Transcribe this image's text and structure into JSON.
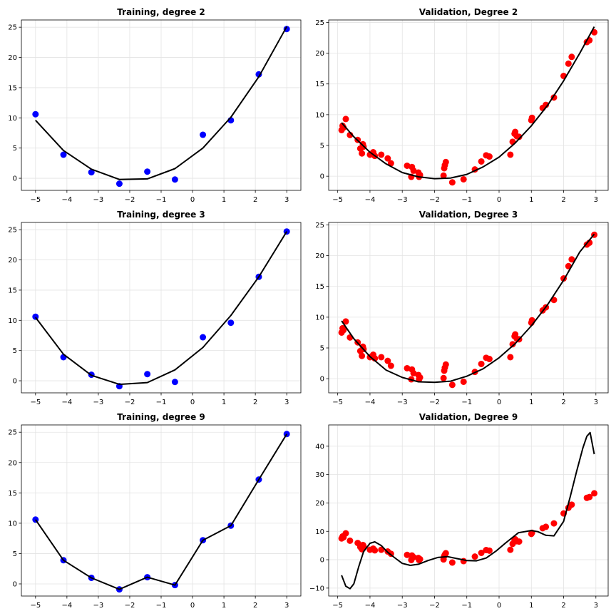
{
  "chart_data": [
    {
      "type": "scatter",
      "title": "Training, degree 2",
      "xlabel": "",
      "ylabel": "",
      "xlim": [
        -5.45,
        3.45
      ],
      "ylim": [
        -2.0,
        26.2
      ],
      "xticks": [
        -5,
        -4,
        -3,
        -2,
        -1,
        0,
        1,
        2,
        3
      ],
      "yticks": [
        0,
        5,
        10,
        15,
        20,
        25
      ],
      "grid": true,
      "series": [
        {
          "kind": "points",
          "color": "#0000ff",
          "x": [
            -5.0,
            -4.11,
            -3.22,
            -2.33,
            -1.44,
            -0.56,
            0.33,
            1.22,
            2.11,
            3.0
          ],
          "y": [
            10.6,
            3.9,
            1.0,
            -0.9,
            1.1,
            -0.2,
            7.2,
            9.6,
            17.2,
            24.7
          ]
        },
        {
          "kind": "line",
          "color": "#000000",
          "x": [
            -5.0,
            -4.11,
            -3.22,
            -2.33,
            -1.44,
            -0.56,
            0.33,
            1.22,
            2.11,
            3.0
          ],
          "y": [
            9.6,
            4.6,
            1.5,
            -0.2,
            -0.1,
            1.6,
            5.0,
            10.1,
            16.8,
            25.1
          ]
        }
      ]
    },
    {
      "type": "scatter",
      "title": "Validation, Degree 2",
      "xlabel": "",
      "ylabel": "",
      "xlim": [
        -5.28,
        3.38
      ],
      "ylim": [
        -2.3,
        25.4
      ],
      "xticks": [
        -5,
        -4,
        -3,
        -2,
        -1,
        0,
        1,
        2,
        3
      ],
      "yticks": [
        0,
        5,
        10,
        15,
        20,
        25
      ],
      "grid": true,
      "series": [
        {
          "kind": "points",
          "color": "#ff0000",
          "x": [
            -4.88,
            -4.85,
            -4.82,
            -4.75,
            -4.62,
            -4.38,
            -4.3,
            -4.25,
            -4.22,
            -4.2,
            -4.0,
            -3.9,
            -3.85,
            -3.65,
            -3.45,
            -3.35,
            -2.85,
            -2.72,
            -2.7,
            -2.65,
            -2.5,
            -2.48,
            -2.45,
            -1.72,
            -1.7,
            -1.68,
            -1.65,
            -1.45,
            -1.1,
            -0.75,
            -0.55,
            -0.4,
            -0.3,
            0.35,
            0.42,
            0.48,
            0.5,
            0.55,
            0.62,
            1.0,
            1.02,
            1.35,
            1.45,
            1.7,
            2.0,
            2.15,
            2.25,
            2.72,
            2.8,
            2.95
          ],
          "y": [
            7.5,
            8.2,
            7.9,
            9.3,
            6.7,
            5.9,
            4.5,
            3.7,
            5.2,
            4.8,
            3.5,
            3.9,
            3.3,
            3.5,
            2.9,
            2.1,
            1.7,
            -0.1,
            1.5,
            0.9,
            0.6,
            -0.1,
            0.2,
            0.1,
            1.3,
            1.8,
            2.3,
            -1.0,
            -0.5,
            1.1,
            2.4,
            3.4,
            3.2,
            3.5,
            5.6,
            6.9,
            7.2,
            6.5,
            6.4,
            9.1,
            9.5,
            11.1,
            11.6,
            12.8,
            16.3,
            18.3,
            19.4,
            21.8,
            22.1,
            23.4
          ]
        },
        {
          "kind": "line",
          "color": "#000000",
          "x": [
            -4.88,
            -4.5,
            -4.0,
            -3.5,
            -3.0,
            -2.5,
            -2.0,
            -1.5,
            -1.0,
            -0.5,
            0.0,
            0.5,
            1.0,
            1.5,
            2.0,
            2.5,
            2.95
          ],
          "y": [
            8.7,
            6.4,
            3.9,
            2.0,
            0.6,
            -0.1,
            -0.4,
            -0.3,
            0.3,
            1.5,
            3.1,
            5.4,
            8.2,
            11.5,
            15.5,
            20.0,
            24.3
          ]
        }
      ]
    },
    {
      "type": "scatter",
      "title": "Training, degree 3",
      "xlabel": "",
      "ylabel": "",
      "xlim": [
        -5.45,
        3.45
      ],
      "ylim": [
        -2.0,
        26.2
      ],
      "xticks": [
        -5,
        -4,
        -3,
        -2,
        -1,
        0,
        1,
        2,
        3
      ],
      "yticks": [
        0,
        5,
        10,
        15,
        20,
        25
      ],
      "grid": true,
      "series": [
        {
          "kind": "points",
          "color": "#0000ff",
          "x": [
            -5.0,
            -4.11,
            -3.22,
            -2.33,
            -1.44,
            -0.56,
            0.33,
            1.22,
            2.11,
            3.0
          ],
          "y": [
            10.6,
            3.9,
            1.0,
            -0.9,
            1.1,
            -0.2,
            7.2,
            9.6,
            17.2,
            24.7
          ]
        },
        {
          "kind": "line",
          "color": "#000000",
          "x": [
            -5.0,
            -4.11,
            -3.22,
            -2.33,
            -1.44,
            -0.56,
            0.33,
            1.22,
            2.11,
            3.0
          ],
          "y": [
            10.5,
            4.4,
            0.9,
            -0.6,
            -0.3,
            1.8,
            5.5,
            10.8,
            17.2,
            24.7
          ]
        }
      ]
    },
    {
      "type": "scatter",
      "title": "Validation, Degree 3",
      "xlabel": "",
      "ylabel": "",
      "xlim": [
        -5.28,
        3.38
      ],
      "ylim": [
        -2.3,
        25.4
      ],
      "xticks": [
        -5,
        -4,
        -3,
        -2,
        -1,
        0,
        1,
        2,
        3
      ],
      "yticks": [
        0,
        5,
        10,
        15,
        20,
        25
      ],
      "grid": true,
      "series": [
        {
          "kind": "points",
          "color": "#ff0000",
          "x": [
            -4.88,
            -4.85,
            -4.82,
            -4.75,
            -4.62,
            -4.38,
            -4.3,
            -4.25,
            -4.22,
            -4.2,
            -4.0,
            -3.9,
            -3.85,
            -3.65,
            -3.45,
            -3.35,
            -2.85,
            -2.72,
            -2.7,
            -2.65,
            -2.5,
            -2.48,
            -2.45,
            -1.72,
            -1.7,
            -1.68,
            -1.65,
            -1.45,
            -1.1,
            -0.75,
            -0.55,
            -0.4,
            -0.3,
            0.35,
            0.42,
            0.48,
            0.5,
            0.55,
            0.62,
            1.0,
            1.02,
            1.35,
            1.45,
            1.7,
            2.0,
            2.15,
            2.25,
            2.72,
            2.8,
            2.95
          ],
          "y": [
            7.5,
            8.2,
            7.9,
            9.3,
            6.7,
            5.9,
            4.5,
            3.7,
            5.2,
            4.8,
            3.5,
            3.9,
            3.3,
            3.5,
            2.9,
            2.1,
            1.7,
            -0.1,
            1.5,
            0.9,
            0.6,
            -0.1,
            0.2,
            0.1,
            1.3,
            1.8,
            2.3,
            -1.0,
            -0.5,
            1.1,
            2.4,
            3.4,
            3.2,
            3.5,
            5.6,
            6.9,
            7.2,
            6.5,
            6.4,
            9.1,
            9.5,
            11.1,
            11.6,
            12.8,
            16.3,
            18.3,
            19.4,
            21.8,
            22.1,
            23.4
          ]
        },
        {
          "kind": "line",
          "color": "#000000",
          "x": [
            -4.88,
            -4.5,
            -4.0,
            -3.5,
            -3.0,
            -2.5,
            -2.0,
            -1.5,
            -1.0,
            -0.5,
            0.0,
            0.5,
            1.0,
            1.5,
            2.0,
            2.5,
            2.95
          ],
          "y": [
            9.4,
            6.5,
            3.6,
            1.4,
            0.2,
            -0.5,
            -0.6,
            -0.4,
            0.4,
            1.6,
            3.4,
            5.7,
            8.6,
            12.0,
            16.0,
            20.6,
            23.5
          ]
        }
      ]
    },
    {
      "type": "scatter",
      "title": "Training, degree 9",
      "xlabel": "",
      "ylabel": "",
      "xlim": [
        -5.45,
        3.45
      ],
      "ylim": [
        -2.0,
        26.2
      ],
      "xticks": [
        -5,
        -4,
        -3,
        -2,
        -1,
        0,
        1,
        2,
        3
      ],
      "yticks": [
        0,
        5,
        10,
        15,
        20,
        25
      ],
      "grid": true,
      "series": [
        {
          "kind": "points",
          "color": "#0000ff",
          "x": [
            -5.0,
            -4.11,
            -3.22,
            -2.33,
            -1.44,
            -0.56,
            0.33,
            1.22,
            2.11,
            3.0
          ],
          "y": [
            10.6,
            3.9,
            1.0,
            -0.9,
            1.1,
            -0.2,
            7.2,
            9.6,
            17.2,
            24.7
          ]
        },
        {
          "kind": "line",
          "color": "#000000",
          "x": [
            -5.0,
            -4.11,
            -3.22,
            -2.33,
            -1.44,
            -0.56,
            0.33,
            1.22,
            2.11,
            3.0
          ],
          "y": [
            10.6,
            3.9,
            1.0,
            -0.9,
            1.1,
            -0.2,
            7.2,
            9.6,
            17.2,
            24.7
          ]
        }
      ]
    },
    {
      "type": "scatter",
      "title": "Validation, Degree 9",
      "xlabel": "",
      "ylabel": "",
      "xlim": [
        -5.28,
        3.38
      ],
      "ylim": [
        -12.8,
        47.5
      ],
      "xticks": [
        -5,
        -4,
        -3,
        -2,
        -1,
        0,
        1,
        2,
        3
      ],
      "yticks": [
        -10,
        0,
        10,
        20,
        30,
        40
      ],
      "grid": true,
      "series": [
        {
          "kind": "points",
          "color": "#ff0000",
          "x": [
            -4.88,
            -4.85,
            -4.82,
            -4.75,
            -4.62,
            -4.38,
            -4.3,
            -4.25,
            -4.22,
            -4.2,
            -4.0,
            -3.9,
            -3.85,
            -3.65,
            -3.45,
            -3.35,
            -2.85,
            -2.72,
            -2.7,
            -2.65,
            -2.5,
            -2.48,
            -2.45,
            -1.72,
            -1.7,
            -1.68,
            -1.65,
            -1.45,
            -1.1,
            -0.75,
            -0.55,
            -0.4,
            -0.3,
            0.35,
            0.42,
            0.48,
            0.5,
            0.55,
            0.62,
            1.0,
            1.02,
            1.35,
            1.45,
            1.7,
            2.0,
            2.15,
            2.25,
            2.72,
            2.8,
            2.95
          ],
          "y": [
            7.5,
            8.2,
            7.9,
            9.3,
            6.7,
            5.9,
            4.5,
            3.7,
            5.2,
            4.8,
            3.5,
            3.9,
            3.3,
            3.5,
            2.9,
            2.1,
            1.7,
            -0.1,
            1.5,
            0.9,
            0.6,
            -0.1,
            0.2,
            0.1,
            1.3,
            1.8,
            2.3,
            -1.0,
            -0.5,
            1.1,
            2.4,
            3.4,
            3.2,
            3.5,
            5.6,
            6.9,
            7.2,
            6.5,
            6.4,
            9.1,
            9.5,
            11.1,
            11.6,
            12.8,
            16.3,
            18.3,
            19.4,
            21.8,
            22.1,
            23.4
          ]
        },
        {
          "kind": "line",
          "color": "#000000",
          "x": [
            -4.88,
            -4.75,
            -4.62,
            -4.5,
            -4.35,
            -4.2,
            -4.0,
            -3.85,
            -3.65,
            -3.45,
            -3.2,
            -3.0,
            -2.75,
            -2.5,
            -2.2,
            -1.9,
            -1.6,
            -1.3,
            -1.0,
            -0.7,
            -0.4,
            -0.1,
            0.2,
            0.6,
            1.0,
            1.2,
            1.45,
            1.7,
            2.0,
            2.2,
            2.4,
            2.6,
            2.72,
            2.82,
            2.95
          ],
          "y": [
            -5.5,
            -9.3,
            -10.2,
            -8.5,
            -2.5,
            2.8,
            5.8,
            6.3,
            5.0,
            2.6,
            0.4,
            -1.3,
            -2.0,
            -1.6,
            -0.3,
            0.8,
            1.1,
            0.4,
            -0.3,
            -0.4,
            0.6,
            3.0,
            5.9,
            9.5,
            10.3,
            9.9,
            8.6,
            8.4,
            13.5,
            22.0,
            31.0,
            39.5,
            43.5,
            44.8,
            37.2
          ]
        }
      ]
    }
  ]
}
